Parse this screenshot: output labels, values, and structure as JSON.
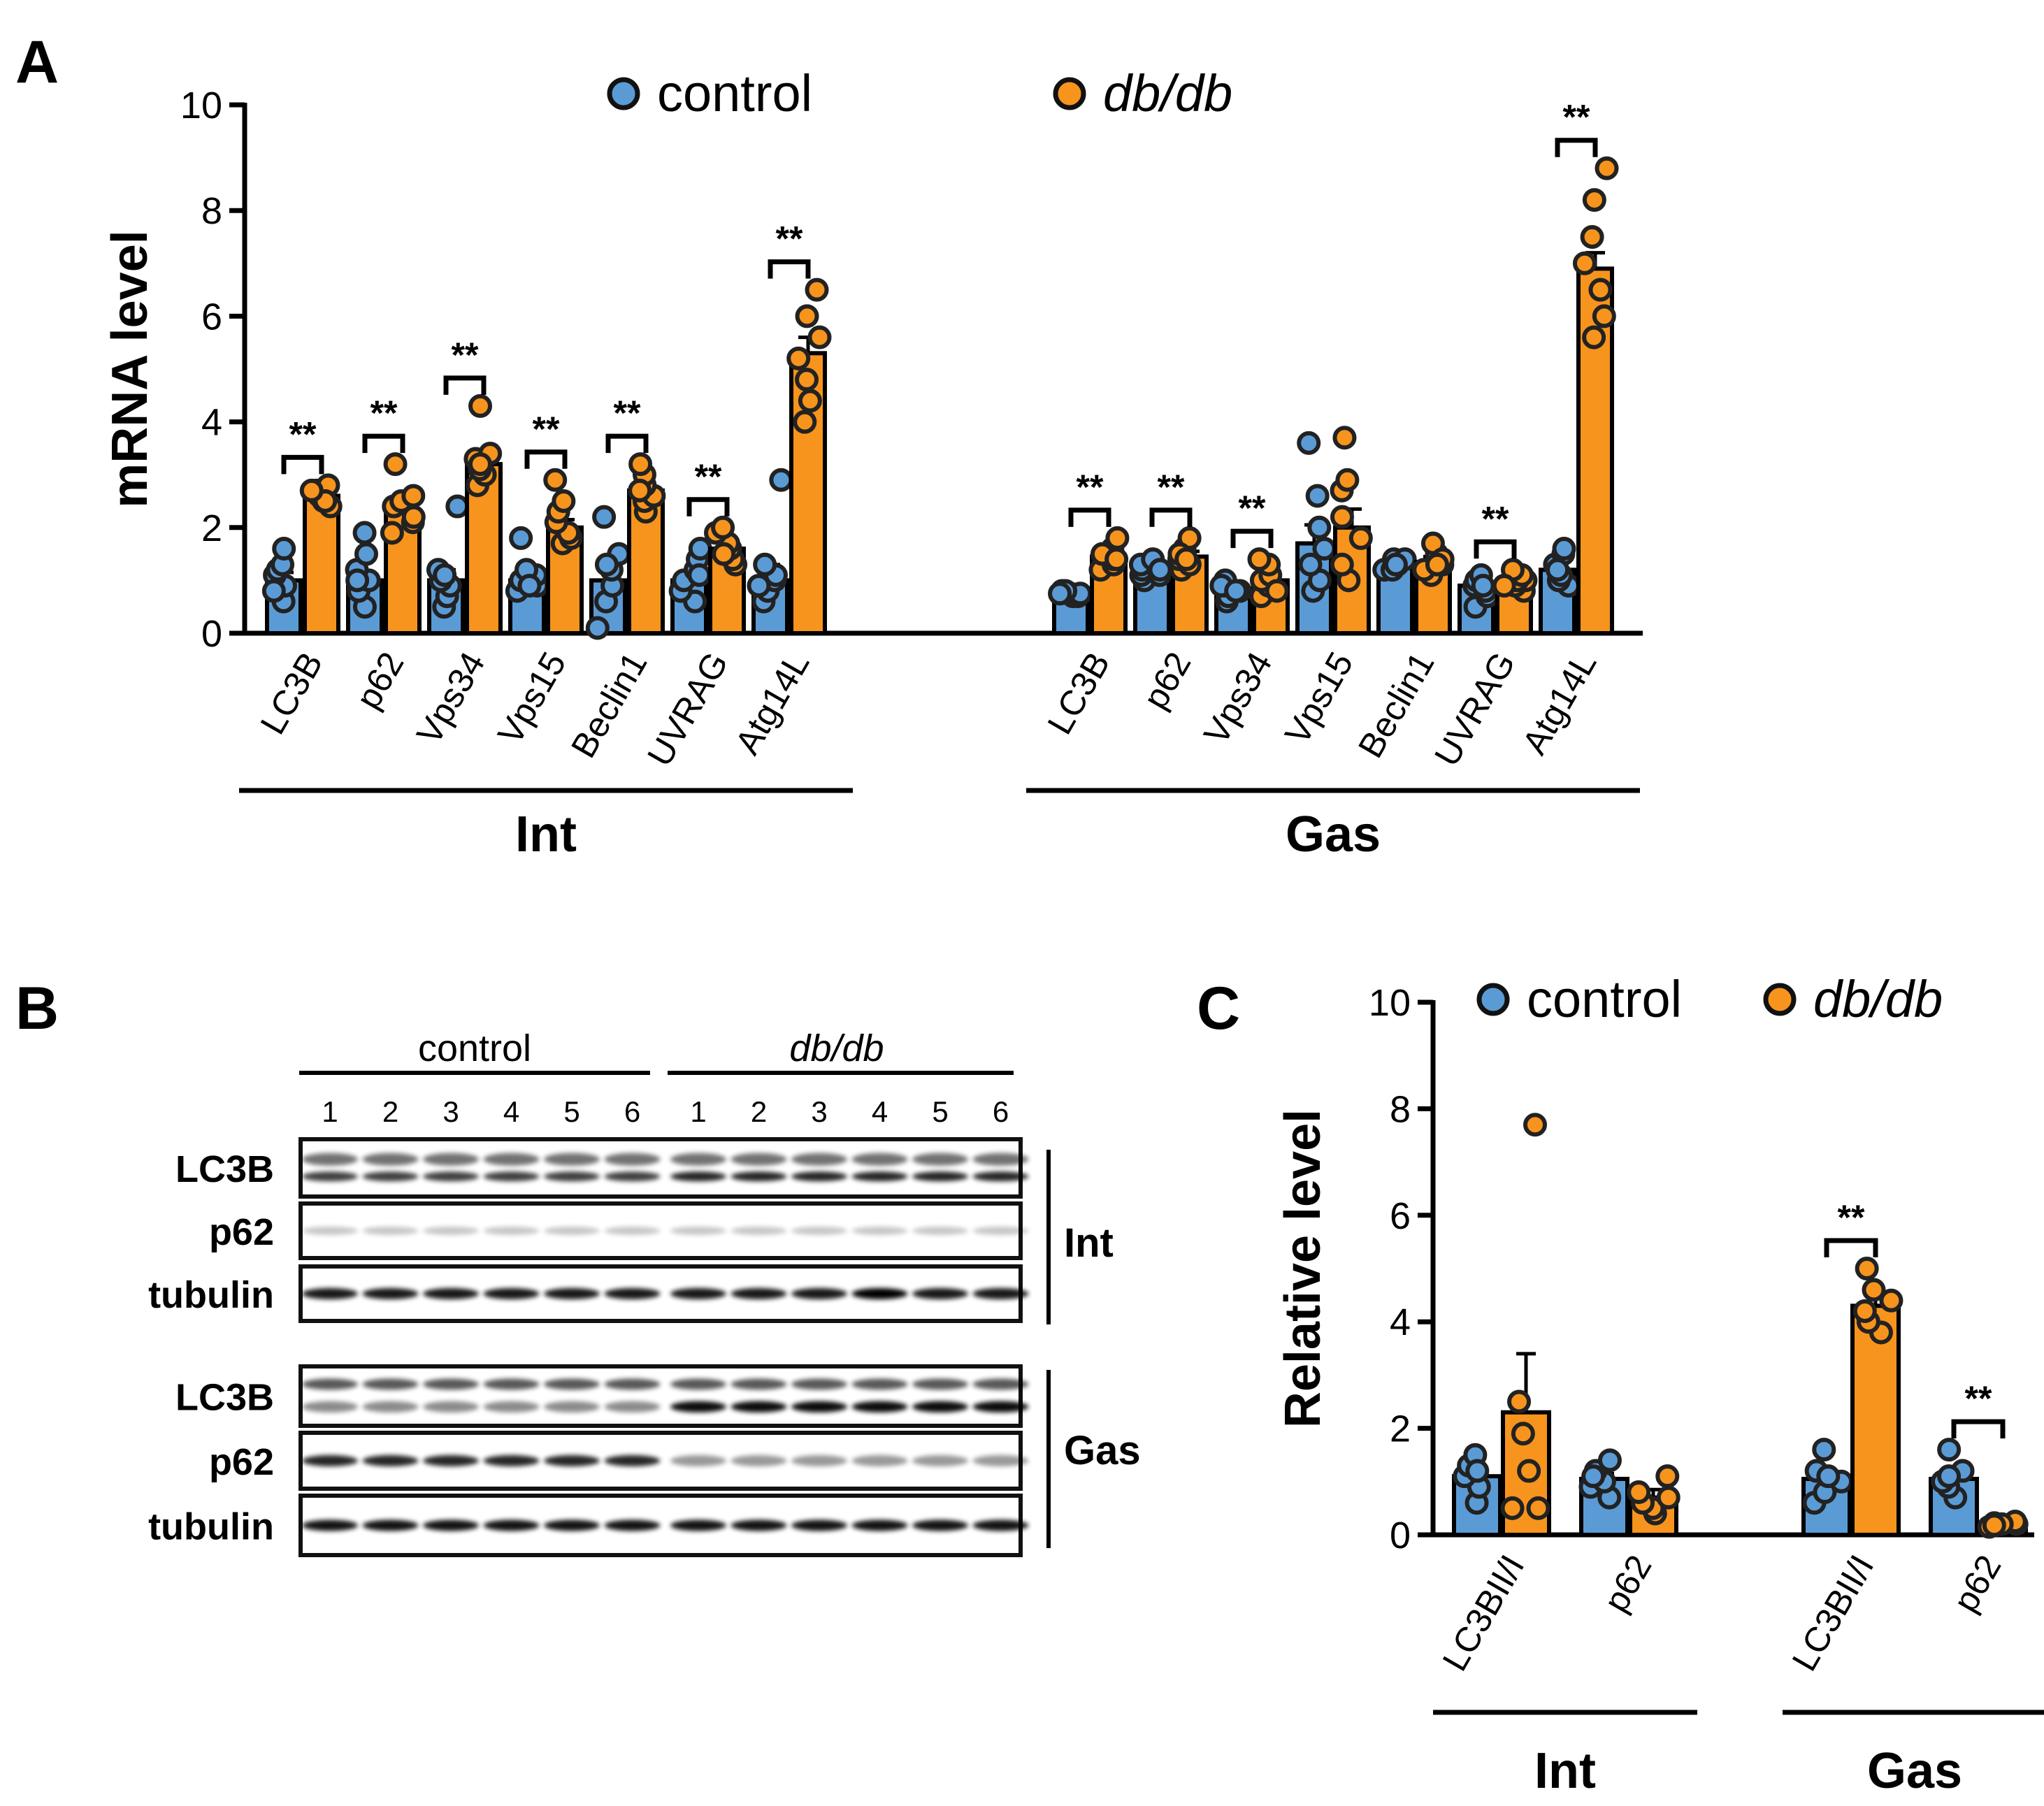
{
  "colors": {
    "control": "#5B9BD5",
    "dbdb": "#F7941D",
    "dot_edge": "#222222",
    "axis": "#000000"
  },
  "panel_labels": {
    "a": "A",
    "b": "B",
    "c": "C"
  },
  "chart_data": [
    {
      "id": "A",
      "type": "bar",
      "ylabel": "mRNA level",
      "ylim": [
        0,
        10
      ],
      "yticks": [
        "0",
        "2",
        "4",
        "6",
        "8",
        "10"
      ],
      "legend": [
        {
          "name": "control",
          "style": "normal"
        },
        {
          "name": "db/db",
          "style": "italic"
        }
      ],
      "groups": [
        {
          "name": "Int",
          "categories": [
            "LC3B",
            "p62",
            "Vps34",
            "Vps15",
            "Beclin1",
            "UVRAG",
            "Atg14L"
          ],
          "series": [
            {
              "name": "control",
              "values": [
                1.0,
                1.0,
                1.0,
                1.0,
                1.0,
                1.0,
                1.0
              ],
              "sem": [
                0.15,
                0.15,
                0.2,
                0.1,
                0.25,
                0.15,
                0.3
              ],
              "points": [
                [
                  0.6,
                  0.9,
                  1.1,
                  1.2,
                  1.3,
                  1.6,
                  0.8
                ],
                [
                  0.5,
                  0.8,
                  1.0,
                  1.2,
                  1.5,
                  1.9,
                  1.0
                ],
                [
                  0.5,
                  0.7,
                  0.9,
                  1.0,
                  1.2,
                  2.4,
                  1.1
                ],
                [
                  0.8,
                  0.9,
                  1.0,
                  1.1,
                  1.2,
                  1.8,
                  0.9
                ],
                [
                  0.1,
                  0.6,
                  0.9,
                  1.2,
                  1.5,
                  2.2,
                  1.3
                ],
                [
                  0.6,
                  0.8,
                  1.0,
                  1.2,
                  1.4,
                  1.6,
                  1.1
                ],
                [
                  0.6,
                  0.8,
                  1.0,
                  1.1,
                  1.3,
                  2.9,
                  0.9
                ]
              ]
            },
            {
              "name": "db/db",
              "values": [
                2.6,
                2.3,
                3.2,
                2.0,
                2.7,
                1.6,
                5.3
              ],
              "sem": [
                0.1,
                0.2,
                0.2,
                0.15,
                0.15,
                0.1,
                0.3
              ],
              "points": [
                [
                  2.4,
                  2.5,
                  2.6,
                  2.7,
                  2.8,
                  2.5,
                  2.7
                ],
                [
                  1.9,
                  2.1,
                  2.2,
                  2.4,
                  2.5,
                  2.6,
                  3.2
                ],
                [
                  2.8,
                  3.0,
                  3.1,
                  3.3,
                  3.4,
                  4.3,
                  3.2
                ],
                [
                  1.7,
                  1.8,
                  1.9,
                  2.1,
                  2.3,
                  2.5,
                  2.9
                ],
                [
                  2.3,
                  2.5,
                  2.6,
                  2.8,
                  3.0,
                  3.2,
                  2.7
                ],
                [
                  1.3,
                  1.4,
                  1.6,
                  1.7,
                  1.9,
                  2.0,
                  1.5
                ],
                [
                  4.0,
                  4.4,
                  4.8,
                  5.2,
                  5.6,
                  6.0,
                  6.5
                ]
              ]
            }
          ],
          "significance": [
            "**",
            "**",
            "**",
            "**",
            "**",
            "**",
            "**"
          ]
        },
        {
          "name": "Gas",
          "categories": [
            "LC3B",
            "p62",
            "Vps34",
            "Vps15",
            "Beclin1",
            "UVRAG",
            "Atg14L"
          ],
          "series": [
            {
              "name": "control",
              "values": [
                0.75,
                1.15,
                0.85,
                1.7,
                1.3,
                0.9,
                1.2
              ],
              "sem": [
                0.05,
                0.1,
                0.05,
                0.35,
                0.05,
                0.08,
                0.1
              ],
              "points": [
                [
                  0.7,
                  0.75,
                  0.8,
                  0.7,
                  0.75,
                  0.8,
                  0.75
                ],
                [
                  1.0,
                  1.1,
                  1.2,
                  1.3,
                  1.4,
                  1.1,
                  1.2
                ],
                [
                  0.6,
                  0.7,
                  0.8,
                  0.9,
                  1.0,
                  0.9,
                  0.8
                ],
                [
                  0.8,
                  1.0,
                  1.3,
                  1.6,
                  2.0,
                  2.6,
                  3.6
                ],
                [
                  1.2,
                  1.3,
                  1.4,
                  1.2,
                  1.3,
                  1.4,
                  1.3
                ],
                [
                  0.5,
                  0.7,
                  0.8,
                  0.9,
                  1.0,
                  1.1,
                  0.9
                ],
                [
                  0.9,
                  1.0,
                  1.1,
                  1.3,
                  1.5,
                  1.6,
                  1.2
                ]
              ]
            },
            {
              "name": "db/db",
              "values": [
                1.45,
                1.45,
                1.0,
                2.0,
                1.35,
                1.0,
                6.9
              ],
              "sem": [
                0.1,
                0.1,
                0.1,
                0.35,
                0.1,
                0.05,
                0.3
              ],
              "points": [
                [
                  1.2,
                  1.3,
                  1.4,
                  1.6,
                  1.8,
                  1.5,
                  1.4
                ],
                [
                  1.2,
                  1.3,
                  1.4,
                  1.6,
                  1.8,
                  1.5,
                  1.4
                ],
                [
                  0.7,
                  0.9,
                  1.0,
                  1.1,
                  1.3,
                  1.4,
                  0.8
                ],
                [
                  1.0,
                  1.3,
                  1.8,
                  2.2,
                  2.7,
                  3.7,
                  2.9
                ],
                [
                  1.1,
                  1.2,
                  1.3,
                  1.5,
                  1.7,
                  1.4,
                  1.3
                ],
                [
                  0.8,
                  0.9,
                  1.0,
                  1.0,
                  1.1,
                  1.2,
                  0.9
                ],
                [
                  5.6,
                  6.0,
                  6.5,
                  7.0,
                  7.5,
                  8.2,
                  8.8
                ]
              ]
            }
          ],
          "significance": [
            "**",
            "**",
            "**",
            "",
            "",
            "**",
            "**"
          ]
        }
      ]
    },
    {
      "id": "C",
      "type": "bar",
      "ylabel": "Relative level",
      "ylim": [
        0,
        10
      ],
      "yticks": [
        "0",
        "2",
        "4",
        "6",
        "8",
        "10"
      ],
      "legend": [
        {
          "name": "control",
          "style": "normal"
        },
        {
          "name": "db/db",
          "style": "italic"
        }
      ],
      "groups": [
        {
          "name": "Int",
          "categories": [
            "LC3BII/I",
            "p62"
          ],
          "series": [
            {
              "name": "control",
              "values": [
                1.1,
                1.05
              ],
              "sem": [
                0.12,
                0.1
              ],
              "points": [
                [
                  0.6,
                  0.9,
                  1.1,
                  1.3,
                  1.5,
                  1.2
                ],
                [
                  0.7,
                  0.9,
                  1.0,
                  1.2,
                  1.4,
                  1.1
                ]
              ]
            },
            {
              "name": "db/db",
              "values": [
                2.3,
                0.7
              ],
              "sem": [
                1.1,
                0.15
              ],
              "points": [
                [
                  0.5,
                  0.5,
                  1.2,
                  1.9,
                  2.5,
                  7.7
                ],
                [
                  0.4,
                  0.5,
                  0.6,
                  0.8,
                  1.1,
                  0.7
                ]
              ]
            }
          ],
          "significance": [
            "",
            ""
          ]
        },
        {
          "name": "Gas",
          "categories": [
            "LC3BII/I",
            "p62"
          ],
          "series": [
            {
              "name": "control",
              "values": [
                1.05,
                1.05
              ],
              "sem": [
                0.15,
                0.12
              ],
              "points": [
                [
                  0.6,
                  0.8,
                  1.0,
                  1.2,
                  1.6,
                  1.1
                ],
                [
                  0.7,
                  0.9,
                  1.0,
                  1.2,
                  1.6,
                  1.1
                ]
              ]
            },
            {
              "name": "db/db",
              "values": [
                4.3,
                0.2
              ],
              "sem": [
                0.2,
                0.03
              ],
              "points": [
                [
                  3.8,
                  4.0,
                  4.2,
                  4.4,
                  4.6,
                  5.0
                ],
                [
                  0.15,
                  0.2,
                  0.22,
                  0.25,
                  0.2,
                  0.18
                ]
              ]
            }
          ],
          "significance": [
            "**",
            "**"
          ]
        }
      ]
    }
  ],
  "blot": {
    "groups": [
      {
        "label": "control",
        "style": "normal"
      },
      {
        "label": "db/db",
        "style": "italic"
      }
    ],
    "lanes": [
      "1",
      "2",
      "3",
      "4",
      "5",
      "6",
      "1",
      "2",
      "3",
      "4",
      "5",
      "6"
    ],
    "tissues": [
      {
        "name": "Int",
        "rows": [
          "LC3B",
          "p62",
          "tubulin"
        ]
      },
      {
        "name": "Gas",
        "rows": [
          "LC3B",
          "p62",
          "tubulin"
        ]
      }
    ]
  }
}
